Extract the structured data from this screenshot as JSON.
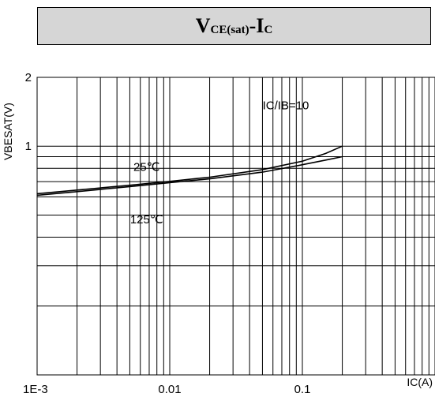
{
  "title": {
    "v": "V",
    "v_sub": "CE(sat)",
    "sep": "- ",
    "i": "I",
    "i_sub": "C"
  },
  "chart_data": {
    "type": "line",
    "ylabel": "VBESAT(V)",
    "xlabel": "IC(A)",
    "x_scale": "log",
    "y_scale": "log",
    "xlim": [
      0.001,
      1
    ],
    "ylim": [
      0.1,
      2
    ],
    "grid": true,
    "x_ticks": [
      {
        "value": 0.001,
        "label": "1E-3"
      },
      {
        "value": 0.01,
        "label": "0.01"
      },
      {
        "value": 0.1,
        "label": "0.1"
      }
    ],
    "y_ticks": [
      {
        "value": 1,
        "label": "1"
      },
      {
        "value": 2,
        "label": "2"
      }
    ],
    "annotations": [
      {
        "text": "IC/IB=10",
        "x": 0.075,
        "y": 1.45
      },
      {
        "text": "25℃",
        "x": 0.0067,
        "y": 0.78
      },
      {
        "text": "125℃",
        "x": 0.0067,
        "y": 0.46
      }
    ],
    "series": [
      {
        "name": "25℃",
        "x": [
          0.001,
          0.002,
          0.005,
          0.01,
          0.02,
          0.05,
          0.1,
          0.15,
          0.2
        ],
        "y": [
          0.62,
          0.643,
          0.675,
          0.702,
          0.732,
          0.79,
          0.86,
          0.93,
          1.0
        ]
      },
      {
        "name": "125℃",
        "x": [
          0.001,
          0.002,
          0.005,
          0.01,
          0.02,
          0.05,
          0.1,
          0.15,
          0.2
        ],
        "y": [
          0.61,
          0.633,
          0.666,
          0.693,
          0.72,
          0.77,
          0.83,
          0.87,
          0.9
        ]
      }
    ]
  }
}
